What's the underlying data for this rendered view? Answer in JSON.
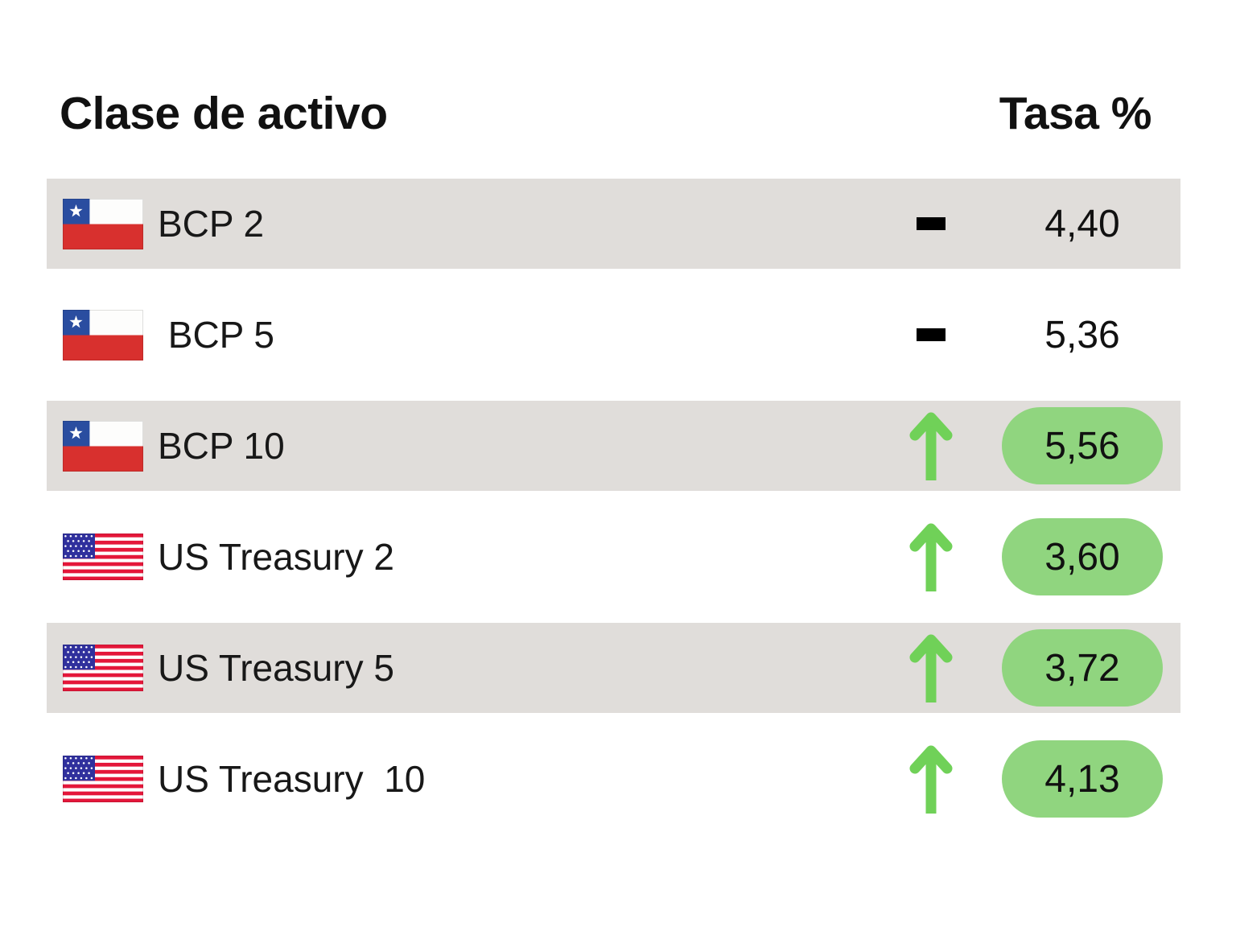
{
  "header": {
    "asset_class_label": "Clase de activo",
    "rate_label": "Tasa %"
  },
  "colors": {
    "row_shade": "#e0ddda",
    "pill_green": "#90d57f",
    "arrow_green": "#70d158",
    "dash_black": "#000000",
    "text": "#181818",
    "chile_blue": "#2a4da0",
    "chile_red": "#d8302e",
    "us_blue": "#30309d",
    "us_red": "#e4173a"
  },
  "table": {
    "rows": [
      {
        "label": "BCP 2",
        "flag": "chile",
        "change": "flat",
        "rate": "4,40",
        "highlighted": false,
        "shaded": true
      },
      {
        "label": " BCP 5",
        "flag": "chile",
        "change": "flat",
        "rate": "5,36",
        "highlighted": false,
        "shaded": false
      },
      {
        "label": "BCP 10",
        "flag": "chile",
        "change": "up",
        "rate": "5,56",
        "highlighted": true,
        "shaded": true
      },
      {
        "label": "US Treasury 2",
        "flag": "us",
        "change": "up",
        "rate": "3,60",
        "highlighted": true,
        "shaded": false
      },
      {
        "label": "US Treasury 5",
        "flag": "us",
        "change": "up",
        "rate": "3,72",
        "highlighted": true,
        "shaded": true
      },
      {
        "label": "US Treasury  10",
        "flag": "us",
        "change": "up",
        "rate": "4,13",
        "highlighted": true,
        "shaded": false
      }
    ]
  },
  "chart_data": {
    "type": "table",
    "title": "",
    "columns": [
      "Clase de activo",
      "Tasa %"
    ],
    "rows": [
      {
        "asset": "BCP 2",
        "country": "Chile",
        "direction": "flat",
        "rate": 4.4,
        "highlighted": false
      },
      {
        "asset": "BCP 5",
        "country": "Chile",
        "direction": "flat",
        "rate": 5.36,
        "highlighted": false
      },
      {
        "asset": "BCP 10",
        "country": "Chile",
        "direction": "up",
        "rate": 5.56,
        "highlighted": true
      },
      {
        "asset": "US Treasury 2",
        "country": "USA",
        "direction": "up",
        "rate": 3.6,
        "highlighted": true
      },
      {
        "asset": "US Treasury 5",
        "country": "USA",
        "direction": "up",
        "rate": 3.72,
        "highlighted": true
      },
      {
        "asset": "US Treasury 10",
        "country": "USA",
        "direction": "up",
        "rate": 4.13,
        "highlighted": true
      }
    ],
    "legend_position": "none",
    "grid": false
  }
}
